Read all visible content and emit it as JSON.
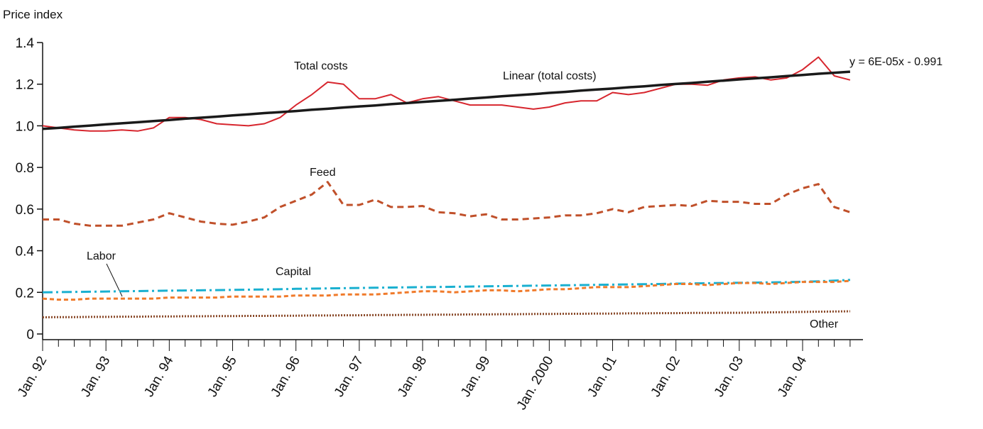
{
  "chart_data": {
    "type": "line",
    "y_label": "Price index",
    "annotations": {
      "total": "Total costs",
      "trend": "Linear (total costs)",
      "equation": "y = 6E-05x - 0.991",
      "feed": "Feed",
      "labor": "Labor",
      "capital": "Capital",
      "other": "Other"
    },
    "categories": [
      "Jan. 92",
      null,
      null,
      null,
      "Jan. 93",
      null,
      null,
      null,
      "Jan. 94",
      null,
      null,
      null,
      "Jan. 95",
      null,
      null,
      null,
      "Jan. 96",
      null,
      null,
      null,
      "Jan. 97",
      null,
      null,
      null,
      "Jan. 98",
      null,
      null,
      null,
      "Jan. 99",
      null,
      null,
      null,
      "Jan. 2000",
      null,
      null,
      null,
      "Jan. 01",
      null,
      null,
      null,
      "Jan. 02",
      null,
      null,
      null,
      "Jan. 03",
      null,
      null,
      null,
      "Jan. 04",
      null,
      null,
      null
    ],
    "ylim": [
      0,
      1.4
    ],
    "yticks": [
      0,
      0.2,
      0.4,
      0.6,
      0.8,
      {
        "value": 1,
        "label": "1.0"
      },
      1.2,
      1.4
    ],
    "series": [
      {
        "name": "Total costs",
        "color": "#d7262e",
        "dash": "none",
        "width": 2,
        "values": [
          1.0,
          0.99,
          0.98,
          0.975,
          0.975,
          0.98,
          0.975,
          0.99,
          1.04,
          1.04,
          1.03,
          1.01,
          1.005,
          1.0,
          1.01,
          1.04,
          1.1,
          1.15,
          1.21,
          1.2,
          1.13,
          1.13,
          1.15,
          1.11,
          1.13,
          1.14,
          1.12,
          1.1,
          1.1,
          1.1,
          1.09,
          1.08,
          1.09,
          1.11,
          1.12,
          1.12,
          1.16,
          1.15,
          1.16,
          1.18,
          1.2,
          1.2,
          1.195,
          1.22,
          1.23,
          1.235,
          1.22,
          1.23,
          1.27,
          1.33,
          1.24,
          1.22
        ]
      },
      {
        "name": "Linear (total costs)",
        "color": "#1a1a1a",
        "dash": "none",
        "width": 3.5,
        "values": [
          0.985,
          0.99,
          0.996,
          1.001,
          1.007,
          1.012,
          1.017,
          1.023,
          1.028,
          1.034,
          1.039,
          1.044,
          1.05,
          1.055,
          1.061,
          1.066,
          1.071,
          1.077,
          1.082,
          1.088,
          1.093,
          1.098,
          1.104,
          1.109,
          1.115,
          1.12,
          1.125,
          1.131,
          1.136,
          1.142,
          1.147,
          1.152,
          1.158,
          1.163,
          1.169,
          1.174,
          1.179,
          1.185,
          1.19,
          1.196,
          1.201,
          1.206,
          1.212,
          1.217,
          1.223,
          1.228,
          1.233,
          1.239,
          1.244,
          1.25,
          1.255,
          1.26
        ]
      },
      {
        "name": "Feed",
        "color": "#c0502a",
        "dash": "9 6",
        "width": 3,
        "values": [
          0.55,
          0.55,
          0.53,
          0.52,
          0.52,
          0.52,
          0.535,
          0.55,
          0.58,
          0.56,
          0.54,
          0.53,
          0.525,
          0.54,
          0.56,
          0.61,
          0.64,
          0.67,
          0.73,
          0.62,
          0.62,
          0.645,
          0.61,
          0.61,
          0.615,
          0.585,
          0.58,
          0.565,
          0.575,
          0.55,
          0.55,
          0.555,
          0.56,
          0.57,
          0.57,
          0.58,
          0.6,
          0.585,
          0.61,
          0.615,
          0.62,
          0.615,
          0.64,
          0.635,
          0.635,
          0.625,
          0.625,
          0.67,
          0.7,
          0.72,
          0.61,
          0.585
        ]
      },
      {
        "name": "Capital",
        "color": "#1ab0d0",
        "dash": "14 5 3 5",
        "width": 3,
        "values": [
          0.2,
          0.201,
          0.202,
          0.203,
          0.204,
          0.205,
          0.206,
          0.207,
          0.208,
          0.209,
          0.21,
          0.211,
          0.212,
          0.213,
          0.214,
          0.215,
          0.217,
          0.218,
          0.219,
          0.22,
          0.221,
          0.222,
          0.223,
          0.224,
          0.225,
          0.226,
          0.227,
          0.228,
          0.229,
          0.23,
          0.231,
          0.232,
          0.233,
          0.234,
          0.235,
          0.236,
          0.237,
          0.238,
          0.239,
          0.24,
          0.242,
          0.243,
          0.244,
          0.245,
          0.246,
          0.247,
          0.248,
          0.249,
          0.251,
          0.253,
          0.256,
          0.26
        ]
      },
      {
        "name": "Labor",
        "color": "#f07a2a",
        "dash": "6 4",
        "width": 3,
        "values": [
          0.17,
          0.165,
          0.165,
          0.17,
          0.17,
          0.17,
          0.17,
          0.17,
          0.175,
          0.175,
          0.175,
          0.175,
          0.18,
          0.18,
          0.18,
          0.18,
          0.185,
          0.185,
          0.185,
          0.19,
          0.19,
          0.19,
          0.195,
          0.2,
          0.205,
          0.205,
          0.2,
          0.205,
          0.21,
          0.21,
          0.205,
          0.21,
          0.215,
          0.215,
          0.22,
          0.225,
          0.225,
          0.225,
          0.23,
          0.235,
          0.24,
          0.24,
          0.235,
          0.24,
          0.245,
          0.245,
          0.24,
          0.245,
          0.25,
          0.25,
          0.25,
          0.255
        ]
      },
      {
        "name": "Other",
        "color": "#8a4a2a",
        "dash": "2 2",
        "width": 3,
        "values": [
          0.08,
          0.081,
          0.081,
          0.082,
          0.082,
          0.083,
          0.083,
          0.084,
          0.084,
          0.085,
          0.085,
          0.086,
          0.086,
          0.087,
          0.087,
          0.088,
          0.088,
          0.089,
          0.089,
          0.09,
          0.09,
          0.091,
          0.091,
          0.092,
          0.092,
          0.093,
          0.093,
          0.094,
          0.094,
          0.095,
          0.095,
          0.096,
          0.096,
          0.097,
          0.097,
          0.098,
          0.098,
          0.099,
          0.099,
          0.1,
          0.1,
          0.101,
          0.101,
          0.102,
          0.102,
          0.103,
          0.104,
          0.105,
          0.106,
          0.107,
          0.108,
          0.109
        ]
      }
    ]
  }
}
